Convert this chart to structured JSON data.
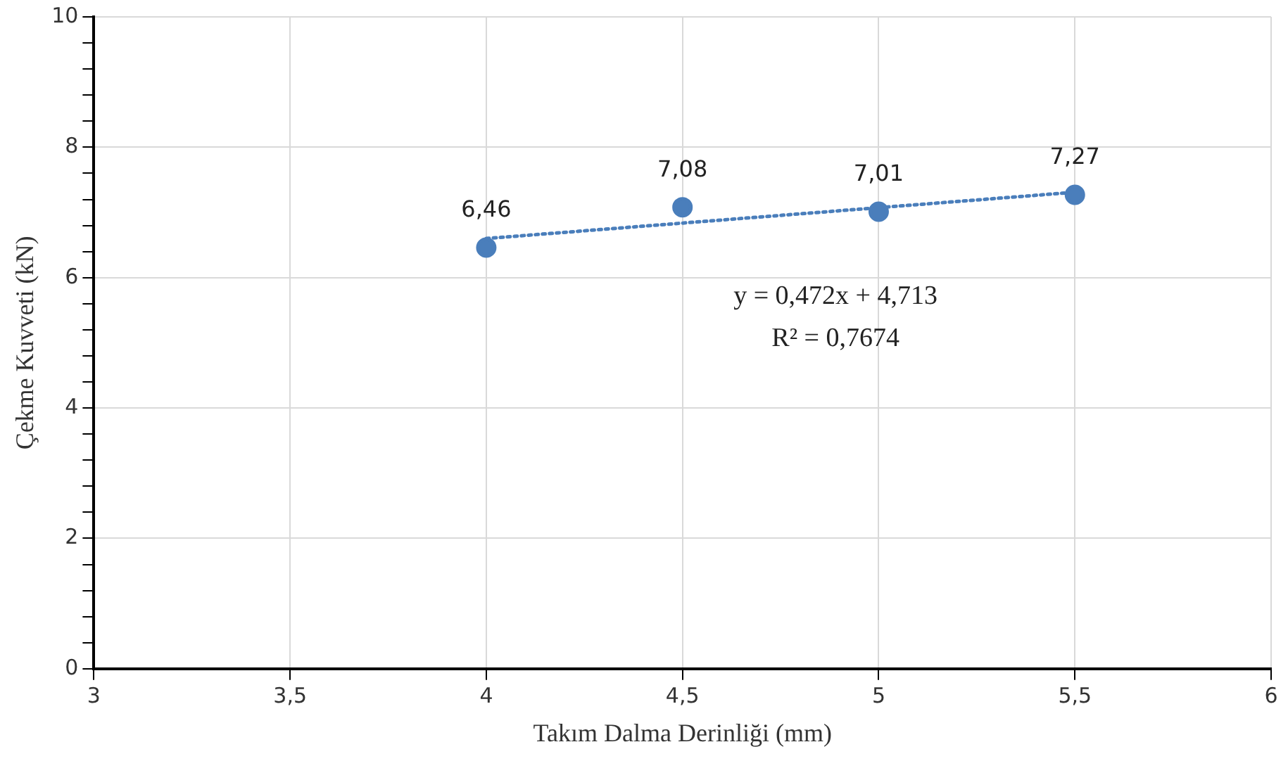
{
  "chart_data": {
    "type": "scatter",
    "xlabel": "Takım Dalma Derinliği (mm)",
    "ylabel": "Çekme Kuvveti (kN)",
    "x": [
      4,
      4.5,
      5,
      5.5
    ],
    "series": [
      {
        "color": "#4a7ebb",
        "values": [
          6.46,
          7.08,
          7.01,
          7.27
        ],
        "value_labels": [
          "6,46",
          "7,08",
          "7,01",
          "7,27"
        ],
        "marker": "circle"
      },
      {
        "type": "line",
        "color": "#4a7ebb",
        "x": [
          4,
          5.5
        ],
        "values": [
          6.6,
          7.31
        ],
        "line_style": "dotted",
        "marker": "none"
      }
    ],
    "annotations": [
      "y = 0,472x + 4,713",
      "R² = 0,7674"
    ],
    "xlim": [
      3,
      6
    ],
    "xticks": [
      3,
      {
        "value": 3.5,
        "label": "3,5"
      },
      4,
      {
        "value": 4.5,
        "label": "4,5"
      },
      5,
      {
        "value": 5.5,
        "label": "5,5"
      },
      6
    ],
    "ylim": [
      0,
      10
    ],
    "yticks": [
      0,
      {
        "value": 0.4,
        "label": null
      },
      {
        "value": 0.8,
        "label": null
      },
      {
        "value": 1.2,
        "label": null
      },
      {
        "value": 1.6,
        "label": null
      },
      2,
      {
        "value": 2.4,
        "label": null
      },
      {
        "value": 2.8,
        "label": null
      },
      {
        "value": 3.2,
        "label": null
      },
      {
        "value": 3.6,
        "label": null
      },
      4,
      {
        "value": 4.4,
        "label": null
      },
      {
        "value": 4.8,
        "label": null
      },
      {
        "value": 5.2,
        "label": null
      },
      {
        "value": 5.6,
        "label": null
      },
      6,
      {
        "value": 6.4,
        "label": null
      },
      {
        "value": 6.8,
        "label": null
      },
      {
        "value": 7.2,
        "label": null
      },
      {
        "value": 7.6,
        "label": null
      },
      8,
      {
        "value": 8.4,
        "label": null
      },
      {
        "value": 8.8,
        "label": null
      },
      {
        "value": 9.2,
        "label": null
      },
      {
        "value": 9.6,
        "label": null
      },
      10
    ],
    "grid": true,
    "legend": false
  }
}
